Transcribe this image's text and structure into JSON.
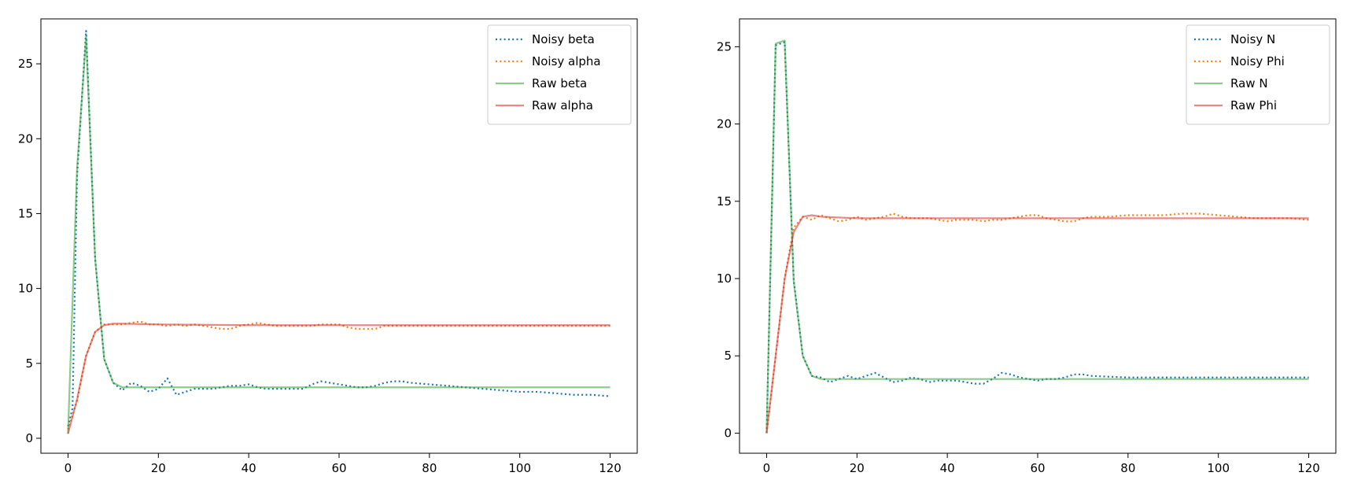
{
  "chart_data": [
    {
      "type": "line",
      "xlim": [
        -6,
        126
      ],
      "ylim": [
        -1,
        28
      ],
      "xticks": [
        0,
        20,
        40,
        60,
        80,
        100,
        120
      ],
      "yticks": [
        0,
        5,
        10,
        15,
        20,
        25
      ],
      "grid": false,
      "legend_position": "top-right",
      "series": [
        {
          "name": "Noisy beta",
          "color": "#1f77b4",
          "style": "dotted",
          "points": [
            [
              0,
              0.8
            ],
            [
              1,
              2
            ],
            [
              2,
              17.5
            ],
            [
              4,
              27.2
            ],
            [
              6,
              12
            ],
            [
              8,
              5.3
            ],
            [
              10,
              3.7
            ],
            [
              12,
              3.2
            ],
            [
              14,
              3.7
            ],
            [
              16,
              3.5
            ],
            [
              18,
              3.1
            ],
            [
              20,
              3.3
            ],
            [
              22,
              4.0
            ],
            [
              24,
              2.9
            ],
            [
              26,
              3.1
            ],
            [
              28,
              3.3
            ],
            [
              30,
              3.3
            ],
            [
              32,
              3.3
            ],
            [
              34,
              3.4
            ],
            [
              36,
              3.5
            ],
            [
              38,
              3.5
            ],
            [
              40,
              3.6
            ],
            [
              42,
              3.4
            ],
            [
              44,
              3.3
            ],
            [
              46,
              3.3
            ],
            [
              48,
              3.3
            ],
            [
              50,
              3.3
            ],
            [
              52,
              3.3
            ],
            [
              54,
              3.6
            ],
            [
              56,
              3.8
            ],
            [
              58,
              3.7
            ],
            [
              60,
              3.6
            ],
            [
              62,
              3.5
            ],
            [
              64,
              3.4
            ],
            [
              66,
              3.4
            ],
            [
              68,
              3.5
            ],
            [
              70,
              3.7
            ],
            [
              72,
              3.8
            ],
            [
              74,
              3.8
            ],
            [
              76,
              3.7
            ],
            [
              80,
              3.6
            ],
            [
              84,
              3.5
            ],
            [
              88,
              3.4
            ],
            [
              92,
              3.3
            ],
            [
              96,
              3.2
            ],
            [
              100,
              3.1
            ],
            [
              104,
              3.1
            ],
            [
              108,
              3.0
            ],
            [
              112,
              2.9
            ],
            [
              116,
              2.9
            ],
            [
              120,
              2.8
            ]
          ]
        },
        {
          "name": "Noisy alpha",
          "color": "#ff7f0e",
          "style": "dotted",
          "points": [
            [
              0,
              0.6
            ],
            [
              2,
              2.5
            ],
            [
              4,
              5.5
            ],
            [
              6,
              7.1
            ],
            [
              8,
              7.6
            ],
            [
              10,
              7.6
            ],
            [
              12,
              7.6
            ],
            [
              14,
              7.7
            ],
            [
              16,
              7.8
            ],
            [
              18,
              7.6
            ],
            [
              20,
              7.6
            ],
            [
              22,
              7.5
            ],
            [
              24,
              7.6
            ],
            [
              26,
              7.5
            ],
            [
              28,
              7.6
            ],
            [
              30,
              7.5
            ],
            [
              32,
              7.4
            ],
            [
              34,
              7.3
            ],
            [
              36,
              7.3
            ],
            [
              38,
              7.5
            ],
            [
              40,
              7.6
            ],
            [
              42,
              7.7
            ],
            [
              44,
              7.6
            ],
            [
              46,
              7.5
            ],
            [
              48,
              7.5
            ],
            [
              50,
              7.5
            ],
            [
              52,
              7.5
            ],
            [
              54,
              7.5
            ],
            [
              56,
              7.6
            ],
            [
              58,
              7.6
            ],
            [
              60,
              7.6
            ],
            [
              62,
              7.4
            ],
            [
              64,
              7.3
            ],
            [
              66,
              7.3
            ],
            [
              68,
              7.3
            ],
            [
              70,
              7.5
            ],
            [
              72,
              7.5
            ],
            [
              80,
              7.5
            ],
            [
              90,
              7.5
            ],
            [
              100,
              7.5
            ],
            [
              110,
              7.5
            ],
            [
              120,
              7.5
            ]
          ]
        },
        {
          "name": "Raw beta",
          "color": "#2ca02c",
          "style": "solid",
          "points": [
            [
              0,
              0.3
            ],
            [
              2,
              18
            ],
            [
              4,
              26.8
            ],
            [
              6,
              12
            ],
            [
              8,
              5.3
            ],
            [
              10,
              3.7
            ],
            [
              12,
              3.4
            ],
            [
              16,
              3.4
            ],
            [
              20,
              3.4
            ],
            [
              40,
              3.4
            ],
            [
              60,
              3.4
            ],
            [
              80,
              3.4
            ],
            [
              100,
              3.4
            ],
            [
              120,
              3.4
            ]
          ]
        },
        {
          "name": "Raw alpha",
          "color": "#d62728",
          "style": "solid",
          "points": [
            [
              0,
              0.3
            ],
            [
              2,
              2.6
            ],
            [
              4,
              5.5
            ],
            [
              6,
              7.1
            ],
            [
              8,
              7.55
            ],
            [
              10,
              7.65
            ],
            [
              12,
              7.65
            ],
            [
              20,
              7.6
            ],
            [
              40,
              7.55
            ],
            [
              60,
              7.55
            ],
            [
              80,
              7.55
            ],
            [
              100,
              7.55
            ],
            [
              120,
              7.55
            ]
          ]
        }
      ]
    },
    {
      "type": "line",
      "xlim": [
        -6,
        126
      ],
      "ylim": [
        -1.3,
        26.8
      ],
      "xticks": [
        0,
        20,
        40,
        60,
        80,
        100,
        120
      ],
      "yticks": [
        0,
        5,
        10,
        15,
        20,
        25
      ],
      "grid": false,
      "legend_position": "top-right",
      "series": [
        {
          "name": "Noisy N",
          "color": "#1f77b4",
          "style": "dotted",
          "points": [
            [
              0,
              0
            ],
            [
              2,
              25.1
            ],
            [
              4,
              25.3
            ],
            [
              6,
              9.9
            ],
            [
              8,
              5.0
            ],
            [
              10,
              3.7
            ],
            [
              12,
              3.6
            ],
            [
              14,
              3.3
            ],
            [
              16,
              3.5
            ],
            [
              18,
              3.7
            ],
            [
              20,
              3.5
            ],
            [
              22,
              3.7
            ],
            [
              24,
              3.9
            ],
            [
              26,
              3.6
            ],
            [
              28,
              3.3
            ],
            [
              30,
              3.4
            ],
            [
              32,
              3.6
            ],
            [
              34,
              3.5
            ],
            [
              36,
              3.3
            ],
            [
              38,
              3.4
            ],
            [
              40,
              3.4
            ],
            [
              42,
              3.4
            ],
            [
              44,
              3.3
            ],
            [
              46,
              3.2
            ],
            [
              48,
              3.2
            ],
            [
              50,
              3.5
            ],
            [
              52,
              3.9
            ],
            [
              54,
              3.8
            ],
            [
              56,
              3.6
            ],
            [
              58,
              3.5
            ],
            [
              60,
              3.4
            ],
            [
              62,
              3.5
            ],
            [
              64,
              3.5
            ],
            [
              66,
              3.6
            ],
            [
              68,
              3.8
            ],
            [
              70,
              3.8
            ],
            [
              72,
              3.7
            ],
            [
              80,
              3.6
            ],
            [
              90,
              3.6
            ],
            [
              100,
              3.6
            ],
            [
              110,
              3.6
            ],
            [
              120,
              3.6
            ]
          ]
        },
        {
          "name": "Noisy Phi",
          "color": "#ff7f0e",
          "style": "dotted",
          "points": [
            [
              0,
              0
            ],
            [
              2,
              5
            ],
            [
              4,
              10
            ],
            [
              6,
              13.3
            ],
            [
              8,
              14.0
            ],
            [
              10,
              13.8
            ],
            [
              12,
              14.1
            ],
            [
              14,
              13.9
            ],
            [
              16,
              13.7
            ],
            [
              18,
              13.8
            ],
            [
              20,
              14.0
            ],
            [
              22,
              13.8
            ],
            [
              24,
              13.9
            ],
            [
              26,
              14.0
            ],
            [
              28,
              14.2
            ],
            [
              30,
              14.0
            ],
            [
              32,
              13.9
            ],
            [
              34,
              13.9
            ],
            [
              36,
              13.9
            ],
            [
              38,
              13.8
            ],
            [
              40,
              13.7
            ],
            [
              42,
              13.8
            ],
            [
              44,
              13.8
            ],
            [
              46,
              13.8
            ],
            [
              48,
              13.7
            ],
            [
              50,
              13.8
            ],
            [
              52,
              13.8
            ],
            [
              54,
              13.9
            ],
            [
              56,
              14.0
            ],
            [
              58,
              14.1
            ],
            [
              60,
              14.1
            ],
            [
              62,
              13.9
            ],
            [
              64,
              13.8
            ],
            [
              66,
              13.7
            ],
            [
              68,
              13.7
            ],
            [
              70,
              13.9
            ],
            [
              72,
              14.0
            ],
            [
              76,
              14.0
            ],
            [
              80,
              14.1
            ],
            [
              84,
              14.1
            ],
            [
              88,
              14.1
            ],
            [
              92,
              14.2
            ],
            [
              96,
              14.2
            ],
            [
              100,
              14.1
            ],
            [
              104,
              14.0
            ],
            [
              108,
              13.9
            ],
            [
              112,
              13.9
            ],
            [
              116,
              13.9
            ],
            [
              120,
              13.8
            ]
          ]
        },
        {
          "name": "Raw N",
          "color": "#2ca02c",
          "style": "solid",
          "points": [
            [
              0,
              0
            ],
            [
              2,
              25.2
            ],
            [
              4,
              25.4
            ],
            [
              6,
              9.8
            ],
            [
              8,
              5.0
            ],
            [
              10,
              3.7
            ],
            [
              12,
              3.5
            ],
            [
              16,
              3.5
            ],
            [
              20,
              3.5
            ],
            [
              40,
              3.5
            ],
            [
              60,
              3.5
            ],
            [
              80,
              3.5
            ],
            [
              100,
              3.5
            ],
            [
              120,
              3.5
            ]
          ]
        },
        {
          "name": "Raw Phi",
          "color": "#d62728",
          "style": "solid",
          "points": [
            [
              0,
              0
            ],
            [
              2,
              5
            ],
            [
              4,
              10
            ],
            [
              6,
              13
            ],
            [
              8,
              14.0
            ],
            [
              10,
              14.1
            ],
            [
              12,
              14.0
            ],
            [
              20,
              13.9
            ],
            [
              40,
              13.9
            ],
            [
              60,
              13.9
            ],
            [
              80,
              13.9
            ],
            [
              100,
              13.9
            ],
            [
              120,
              13.9
            ]
          ]
        }
      ]
    }
  ]
}
